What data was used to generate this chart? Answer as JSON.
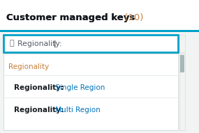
{
  "title_text": "Customer managed keys",
  "title_count": " (10)",
  "title_color": "#16191f",
  "title_count_color": "#c77f3a",
  "search_placeholder": "Regionality: ",
  "search_cursor": "|",
  "dropdown_header": "Regionality",
  "dropdown_header_color": "#c77f3a",
  "option1_bold": "Regionality:",
  "option1_regular": " Single Region",
  "option2_bold": "Regionality:",
  "option2_regular": " Multi Region",
  "option_region_color": "#0073bb",
  "bg_color": "#f2f3f3",
  "white": "#ffffff",
  "search_border_color": "#00a1c9",
  "dropdown_bg": "#ffffff",
  "dropdown_border": "#d5dbdb",
  "text_dark": "#16191f",
  "separator_color": "#eaeded",
  "scrollbar_track": "#f2f3f3",
  "scrollbar_thumb": "#aab7b8",
  "title_fontsize": 9.5,
  "search_fontsize": 7.8,
  "dropdown_fontsize": 7.5
}
